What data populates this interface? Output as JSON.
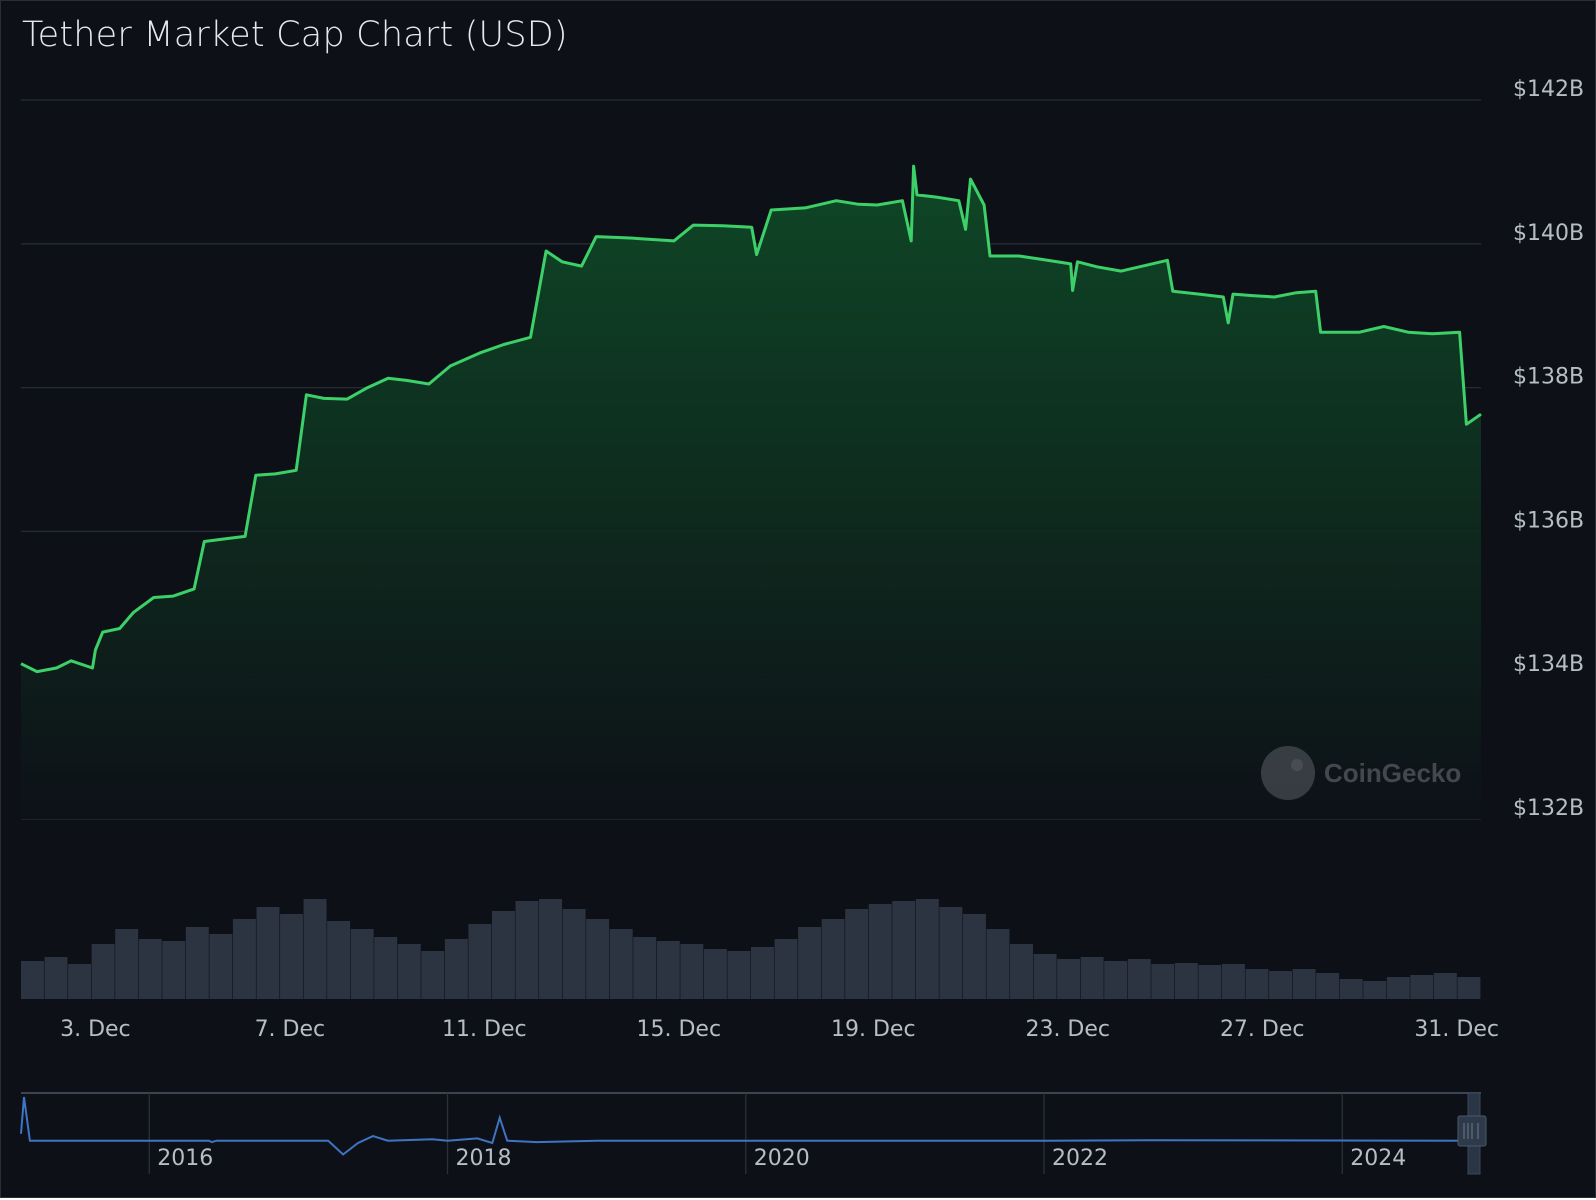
{
  "chart_data": {
    "type": "area",
    "title": "Tether Market Cap Chart (USD)",
    "xlabel": "",
    "ylabel": "",
    "ylim": [
      132,
      142
    ],
    "y_ticks": [
      "$132B",
      "$134B",
      "$136B",
      "$138B",
      "$140B",
      "$142B"
    ],
    "y_tick_values": [
      132,
      134,
      136,
      138,
      140,
      142
    ],
    "x_ticks": [
      "3. Dec",
      "7. Dec",
      "11. Dec",
      "15. Dec",
      "19. Dec",
      "23. Dec",
      "27. Dec",
      "31. Dec"
    ],
    "x_tick_days": [
      3,
      7,
      11,
      15,
      19,
      23,
      27,
      31
    ],
    "xlim_days": [
      1.47,
      31.5
    ],
    "grid": true,
    "line_color": "#3dd068",
    "fill_color": "#0f3a22",
    "series": [
      {
        "unit": "USD billions",
        "points": [
          [
            1.47,
            134.16
          ],
          [
            1.8,
            134.05
          ],
          [
            2.2,
            134.1
          ],
          [
            2.5,
            134.2
          ],
          [
            2.94,
            134.1
          ],
          [
            3.0,
            134.35
          ],
          [
            3.15,
            134.6
          ],
          [
            3.5,
            134.65
          ],
          [
            3.78,
            134.87
          ],
          [
            4.2,
            135.08
          ],
          [
            4.6,
            135.1
          ],
          [
            5.03,
            135.2
          ],
          [
            5.24,
            135.86
          ],
          [
            5.7,
            135.9
          ],
          [
            6.08,
            135.93
          ],
          [
            6.3,
            136.78
          ],
          [
            6.7,
            136.8
          ],
          [
            7.13,
            136.85
          ],
          [
            7.34,
            137.9
          ],
          [
            7.7,
            137.85
          ],
          [
            8.18,
            137.84
          ],
          [
            8.6,
            138.0
          ],
          [
            9.02,
            138.13
          ],
          [
            9.4,
            138.1
          ],
          [
            9.86,
            138.05
          ],
          [
            10.3,
            138.3
          ],
          [
            10.9,
            138.48
          ],
          [
            11.4,
            138.6
          ],
          [
            11.95,
            138.7
          ],
          [
            12.27,
            139.9
          ],
          [
            12.6,
            139.75
          ],
          [
            13.0,
            139.69
          ],
          [
            13.3,
            140.1
          ],
          [
            14.0,
            140.08
          ],
          [
            14.9,
            140.04
          ],
          [
            15.3,
            140.26
          ],
          [
            15.9,
            140.25
          ],
          [
            16.5,
            140.23
          ],
          [
            16.6,
            139.85
          ],
          [
            16.9,
            140.47
          ],
          [
            17.6,
            140.5
          ],
          [
            18.24,
            140.6
          ],
          [
            18.7,
            140.55
          ],
          [
            19.08,
            140.54
          ],
          [
            19.6,
            140.6
          ],
          [
            19.78,
            140.04
          ],
          [
            19.83,
            141.08
          ],
          [
            19.9,
            140.68
          ],
          [
            20.3,
            140.65
          ],
          [
            20.76,
            140.6
          ],
          [
            20.9,
            140.2
          ],
          [
            21.0,
            140.9
          ],
          [
            21.28,
            140.54
          ],
          [
            21.4,
            139.83
          ],
          [
            22.0,
            139.83
          ],
          [
            22.5,
            139.78
          ],
          [
            23.06,
            139.72
          ],
          [
            23.1,
            139.35
          ],
          [
            23.2,
            139.75
          ],
          [
            23.6,
            139.68
          ],
          [
            24.1,
            139.62
          ],
          [
            24.6,
            139.7
          ],
          [
            25.05,
            139.77
          ],
          [
            25.16,
            139.34
          ],
          [
            25.7,
            139.3
          ],
          [
            26.2,
            139.26
          ],
          [
            26.3,
            138.9
          ],
          [
            26.4,
            139.3
          ],
          [
            26.8,
            139.28
          ],
          [
            27.25,
            139.26
          ],
          [
            27.7,
            139.32
          ],
          [
            28.1,
            139.34
          ],
          [
            28.2,
            138.77
          ],
          [
            29.0,
            138.77
          ],
          [
            29.5,
            138.85
          ],
          [
            30.0,
            138.77
          ],
          [
            30.5,
            138.75
          ],
          [
            31.06,
            138.77
          ],
          [
            31.2,
            137.49
          ],
          [
            31.5,
            137.63
          ]
        ]
      }
    ],
    "volume_relative": [
      38,
      42,
      35,
      55,
      70,
      60,
      58,
      72,
      65,
      80,
      92,
      85,
      100,
      78,
      70,
      62,
      55,
      48,
      60,
      75,
      88,
      98,
      100,
      90,
      80,
      70,
      62,
      58,
      55,
      50,
      48,
      52,
      60,
      72,
      80,
      90,
      95,
      98,
      100,
      92,
      85,
      70,
      55,
      45,
      40,
      42,
      38,
      40,
      35,
      36,
      34,
      35,
      30,
      28,
      30,
      26,
      20,
      18,
      22,
      24,
      26,
      22
    ],
    "volume_color": "#2c3442"
  },
  "navigator": {
    "year_labels": [
      "2016",
      "2018",
      "2020",
      "2022",
      "2024"
    ],
    "years": [
      2016,
      2018,
      2020,
      2022,
      2024
    ],
    "xlim_years": [
      2015.14,
      2024.93
    ],
    "shape_relative": [
      [
        2015.14,
        0.2
      ],
      [
        2015.16,
        1.0
      ],
      [
        2015.2,
        0.05
      ],
      [
        2016.4,
        0.05
      ],
      [
        2016.42,
        0.02
      ],
      [
        2016.45,
        0.05
      ],
      [
        2017.2,
        0.05
      ],
      [
        2017.3,
        -0.25
      ],
      [
        2017.4,
        0.0
      ],
      [
        2017.5,
        0.15
      ],
      [
        2017.6,
        0.05
      ],
      [
        2017.9,
        0.08
      ],
      [
        2018.0,
        0.05
      ],
      [
        2018.2,
        0.1
      ],
      [
        2018.25,
        0.05
      ],
      [
        2018.3,
        0.0
      ],
      [
        2018.35,
        0.55
      ],
      [
        2018.4,
        0.05
      ],
      [
        2018.6,
        0.02
      ],
      [
        2019.0,
        0.05
      ],
      [
        2020.0,
        0.05
      ],
      [
        2022.0,
        0.05
      ],
      [
        2022.8,
        0.06
      ],
      [
        2024.93,
        0.05
      ]
    ],
    "line_color": "#3f74c4"
  },
  "watermark": "CoinGecko"
}
